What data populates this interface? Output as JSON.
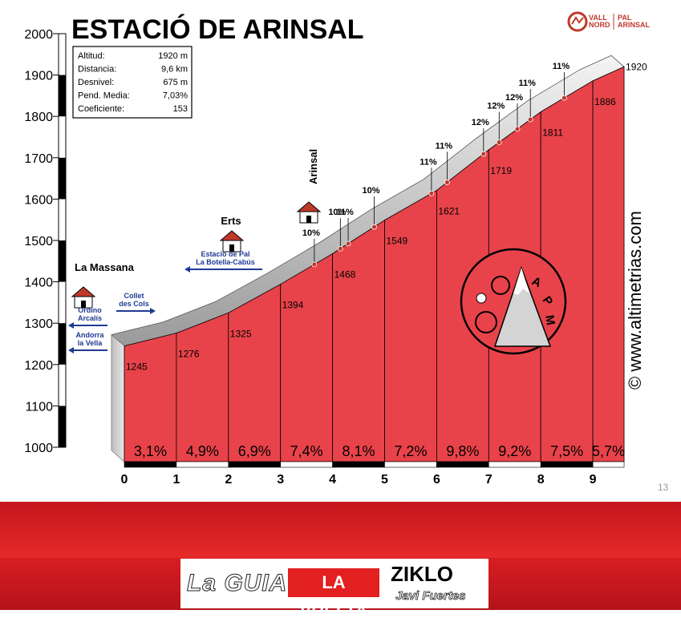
{
  "title": "ESTACIÓ DE ARINSAL",
  "stats": [
    {
      "label": "Altitud:",
      "value": "1920 m"
    },
    {
      "label": "Distancia:",
      "value": "9,6 km"
    },
    {
      "label": "Desnivel:",
      "value": "675 m"
    },
    {
      "label": "Pend. Media:",
      "value": "7,03%"
    },
    {
      "label": "Coeficiente:",
      "value": "153"
    }
  ],
  "credit": "© www.altimetrias.com",
  "page_number": "13",
  "logo": {
    "line1": "VALL",
    "line2": "NORD",
    "right1": "PAL",
    "right2": "ARINSAL"
  },
  "footer": {
    "logo1": "La GUIA",
    "logo2": "LA VUELTA",
    "logo3": "ZIKLO",
    "logo4": "Javi Fuertes"
  },
  "places": [
    {
      "name": "La Massana",
      "km": 0
    },
    {
      "name": "Erts",
      "km": 2.1
    },
    {
      "name": "Arinsal",
      "km": 3.85
    }
  ],
  "road_signs": [
    {
      "lines": [
        "Ordino",
        "Arcalís"
      ],
      "direction": "left"
    },
    {
      "lines": [
        "Andorra",
        "la Vella"
      ],
      "direction": "left"
    },
    {
      "lines": [
        "Collet",
        "des Cols"
      ],
      "direction": "right"
    },
    {
      "lines": [
        "Estació de Pal",
        "La Botella-Cabús"
      ],
      "direction": "left"
    }
  ],
  "chart_data": {
    "type": "area",
    "xlabel": "",
    "ylabel": "",
    "xlim": [
      0,
      9.6
    ],
    "ylim": [
      1000,
      2000
    ],
    "x_ticks": [
      "0",
      "1",
      "2",
      "3",
      "4",
      "5",
      "6",
      "7",
      "8",
      "9"
    ],
    "y_ticks": [
      "1000",
      "1100",
      "1200",
      "1300",
      "1400",
      "1500",
      "1600",
      "1700",
      "1800",
      "1900",
      "2000"
    ],
    "km": [
      0,
      1,
      2,
      3,
      4,
      5,
      6,
      7,
      8,
      9,
      9.6
    ],
    "altitude": [
      1245,
      1276,
      1325,
      1394,
      1468,
      1549,
      1621,
      1719,
      1811,
      1886,
      1920
    ],
    "altitude_labels": [
      "1245",
      "1276",
      "1325",
      "1394",
      "1468",
      "1549",
      "1621",
      "1719",
      "1811",
      "1886",
      "1920"
    ],
    "segment_gradients": [
      "3,1%",
      "4,9%",
      "6,9%",
      "7,4%",
      "8,1%",
      "7,2%",
      "9,8%",
      "9,2%",
      "7,5%",
      "5,7%"
    ],
    "ramps": [
      {
        "km": 3.65,
        "label": "10%"
      },
      {
        "km": 4.15,
        "label": "10%"
      },
      {
        "km": 4.3,
        "label": "11%"
      },
      {
        "km": 4.8,
        "label": "10%"
      },
      {
        "km": 5.9,
        "label": "11%"
      },
      {
        "km": 6.2,
        "label": "11%"
      },
      {
        "km": 6.9,
        "label": "12%"
      },
      {
        "km": 7.2,
        "label": "12%"
      },
      {
        "km": 7.55,
        "label": "12%"
      },
      {
        "km": 7.8,
        "label": "11%"
      },
      {
        "km": 8.45,
        "label": "11%"
      }
    ],
    "fill_color": "#e8434a",
    "grid": false
  }
}
